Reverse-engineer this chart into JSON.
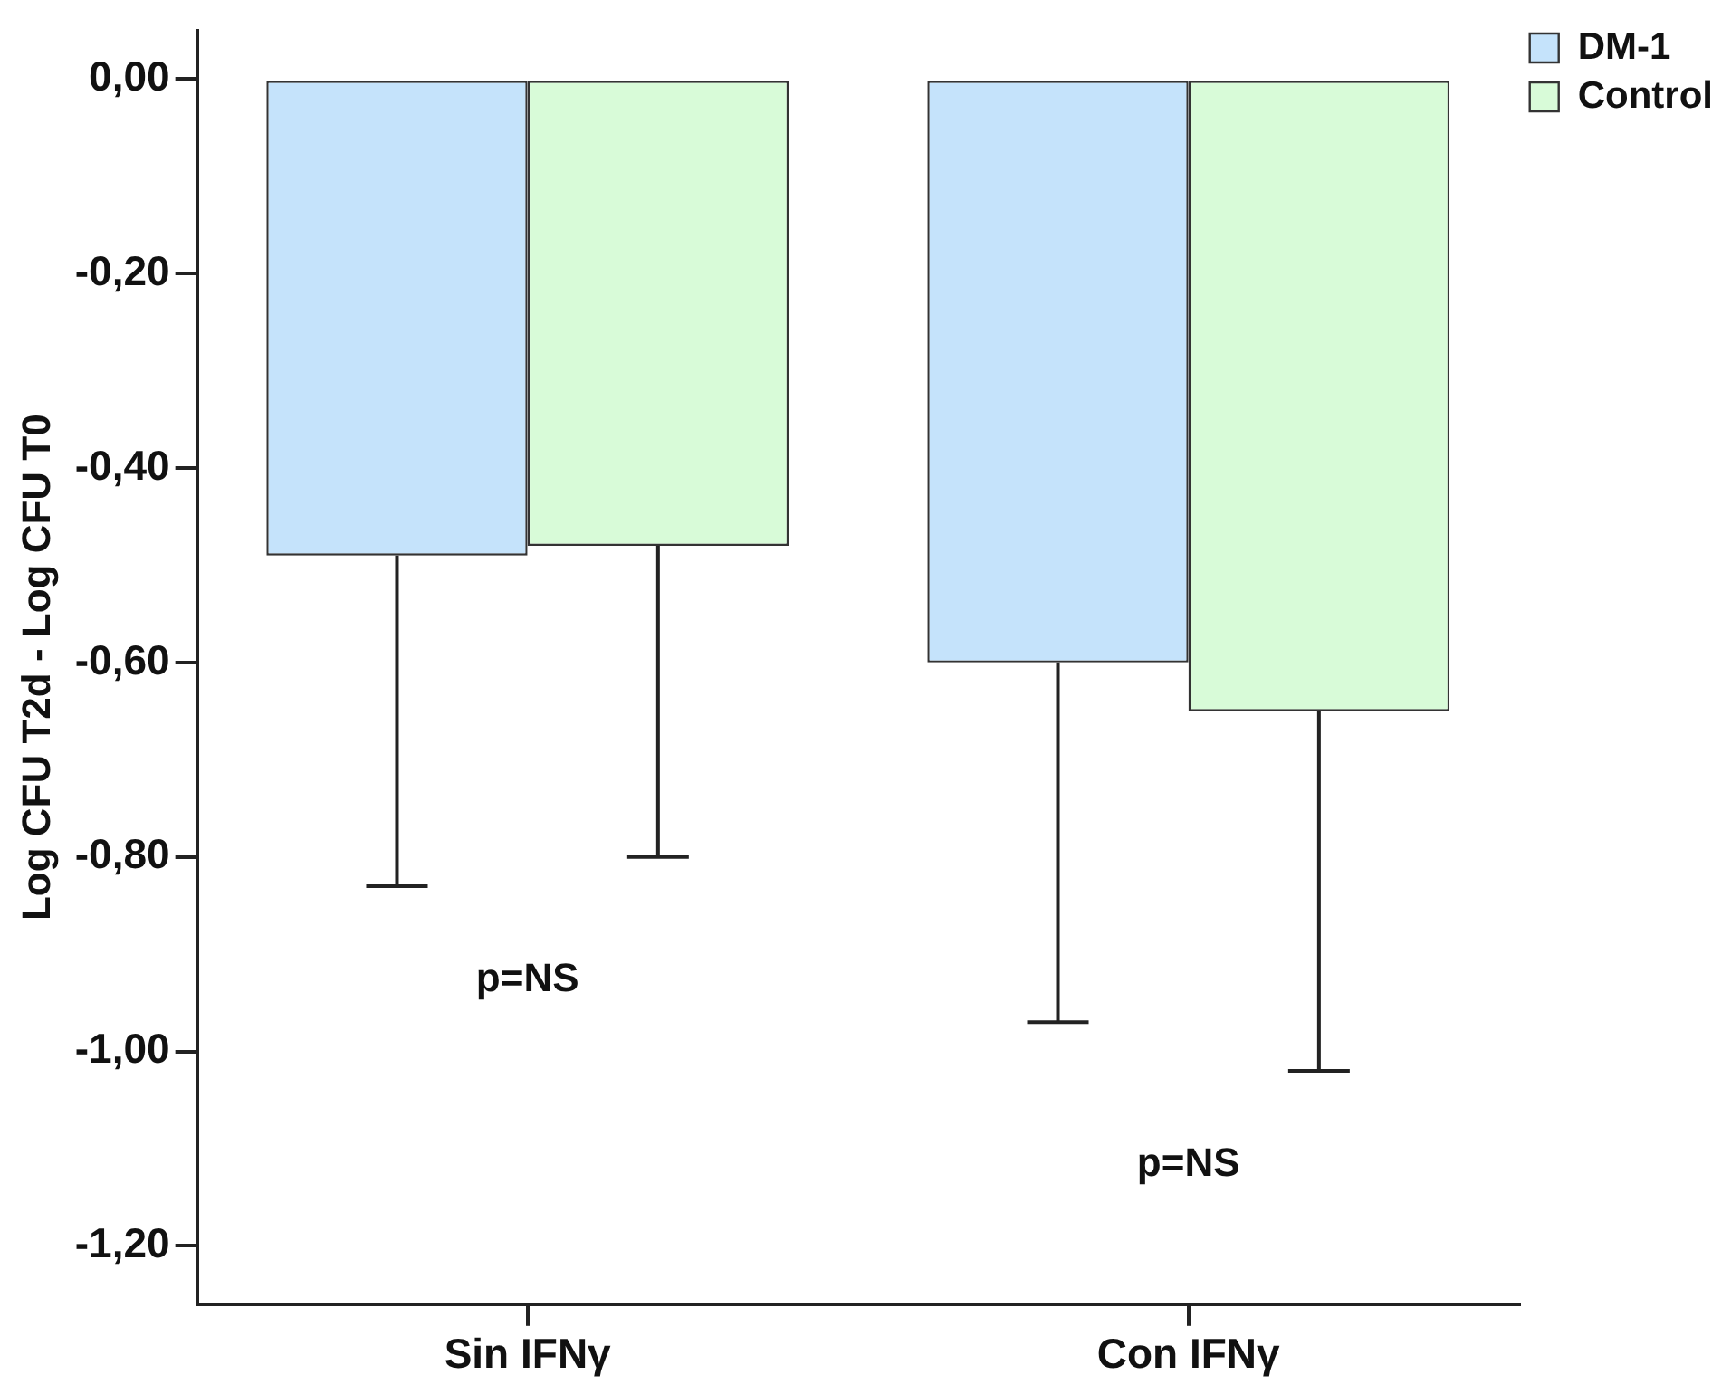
{
  "chart_data": {
    "type": "bar",
    "ylabel": "Log CFU T2d - Log CFU T0",
    "categories": [
      "Sin IFNγ",
      "Con IFNγ"
    ],
    "series": [
      {
        "name": "DM-1",
        "color": "#c5e3fb",
        "values": [
          -0.49,
          -0.6
        ],
        "errors": [
          [
            -0.83,
            -0.49
          ],
          [
            -0.97,
            -0.6
          ]
        ]
      },
      {
        "name": "Control",
        "color": "#d8fbd8",
        "values": [
          -0.48,
          -0.65
        ],
        "errors": [
          [
            -0.8,
            -0.48
          ],
          [
            -1.02,
            -0.65
          ]
        ]
      }
    ],
    "ylim": [
      -1.26,
      0.05
    ],
    "yticks": [
      {
        "value": 0,
        "label": "0,00"
      },
      {
        "value": -0.2,
        "label": "-0,20"
      },
      {
        "value": -0.4,
        "label": "-0,40"
      },
      {
        "value": -0.6,
        "label": "-0,60"
      },
      {
        "value": -0.8,
        "label": "-0,80"
      },
      {
        "value": -1,
        "label": "-1,00"
      },
      {
        "value": -1.2,
        "label": "-1,20"
      }
    ],
    "annotations": [
      "p=NS",
      "p=NS"
    ],
    "grid": false,
    "legend": "top right"
  }
}
